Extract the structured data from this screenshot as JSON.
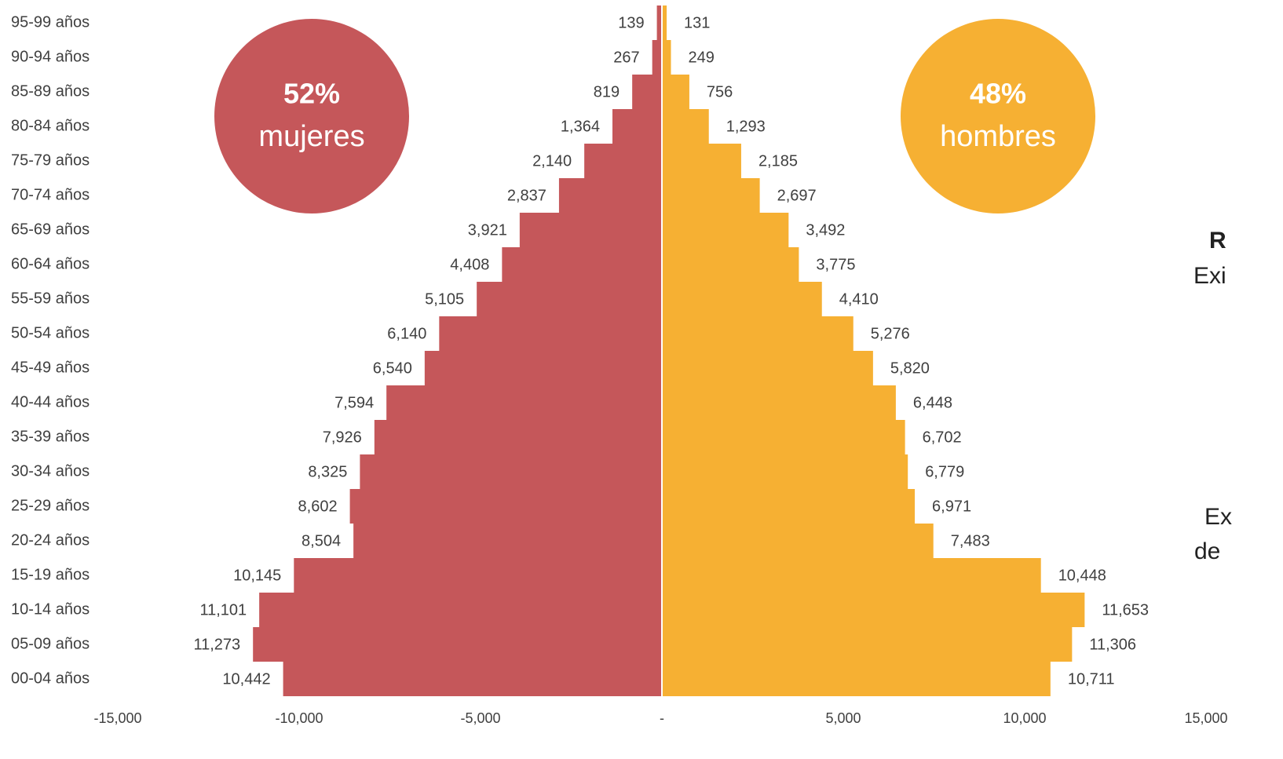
{
  "chart_data": {
    "type": "pyramid",
    "categories": [
      "00-04 años",
      "05-09 años",
      "10-14 años",
      "15-19 años",
      "20-24 años",
      "25-29 años",
      "30-34 años",
      "35-39 años",
      "40-44 años",
      "45-49 años",
      "50-54 años",
      "55-59 años",
      "60-64 años",
      "65-69 años",
      "70-74 años",
      "75-79 años",
      "80-84 años",
      "85-89 años",
      "90-94 años",
      "95-99 años"
    ],
    "series": [
      {
        "name": "mujeres",
        "color": "#c5575a",
        "share": 52,
        "share_label": "52%",
        "values": [
          -10442,
          -11273,
          -11101,
          -10145,
          -8504,
          -8602,
          -8325,
          -7926,
          -7594,
          -6540,
          -6140,
          -5105,
          -4408,
          -3921,
          -2837,
          -2140,
          -1364,
          -819,
          -267,
          -139
        ],
        "value_labels": [
          "10,442",
          "11,273",
          "11,101",
          "10,145",
          "8,504",
          "8,602",
          "8,325",
          "7,926",
          "7,594",
          "6,540",
          "6,140",
          "5,105",
          "4,408",
          "3,921",
          "2,837",
          "2,140",
          "1,364",
          "819",
          "267",
          "139"
        ]
      },
      {
        "name": "hombres",
        "color": "#f6b033",
        "share": 48,
        "share_label": "48%",
        "values": [
          10711,
          11306,
          11653,
          10448,
          7483,
          6971,
          6779,
          6702,
          6448,
          5820,
          5276,
          4410,
          3775,
          3492,
          2697,
          2185,
          1293,
          756,
          249,
          131
        ],
        "value_labels": [
          "10,711",
          "11,306",
          "11,653",
          "10,448",
          "7,483",
          "6,971",
          "6,779",
          "6,702",
          "6,448",
          "5,820",
          "5,276",
          "4,410",
          "3,775",
          "3,492",
          "2,697",
          "2,185",
          "1,293",
          "756",
          "249",
          "131"
        ]
      }
    ],
    "xlim": [
      -15000,
      15000
    ],
    "xticks": [
      {
        "value": -15000,
        "label": "-15,000"
      },
      {
        "value": -10000,
        "label": "-10,000"
      },
      {
        "value": -5000,
        "label": "-5,000"
      },
      {
        "value": 0,
        "label": "-"
      },
      {
        "value": 5000,
        "label": "5,000"
      },
      {
        "value": 10000,
        "label": "10,000"
      },
      {
        "value": 15000,
        "label": "15,000"
      }
    ],
    "annotations": [
      "R",
      "Exi",
      "Ex",
      "de"
    ]
  }
}
